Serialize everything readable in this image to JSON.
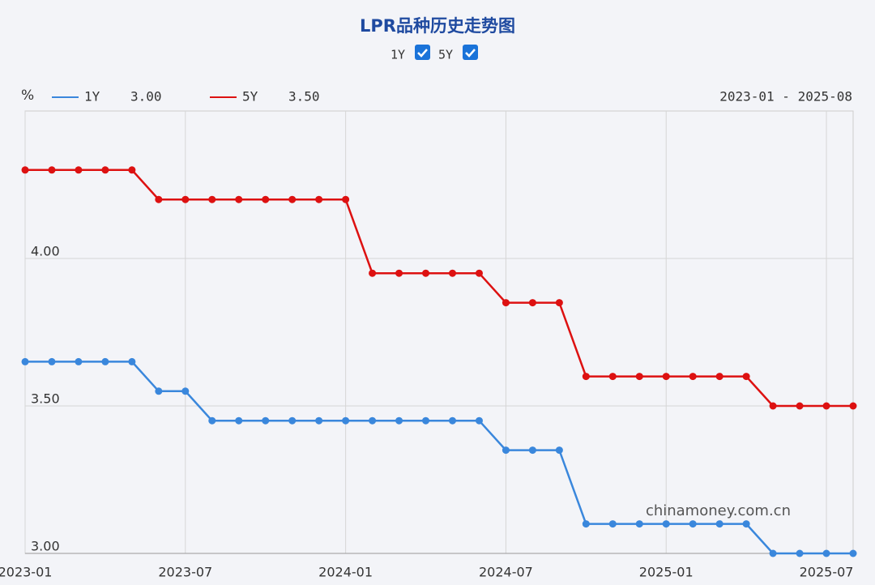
{
  "chart_data": {
    "type": "line",
    "title": "LPR品种历史走势图",
    "y_unit": "%",
    "range_label": "2023-01 - 2025-08",
    "watermark": "chinamoney.com.cn",
    "x": [
      "2023-01",
      "2023-02",
      "2023-03",
      "2023-04",
      "2023-05",
      "2023-06",
      "2023-07",
      "2023-08",
      "2023-09",
      "2023-10",
      "2023-11",
      "2023-12",
      "2024-01",
      "2024-02",
      "2024-03",
      "2024-04",
      "2024-05",
      "2024-06",
      "2024-07",
      "2024-08",
      "2024-09",
      "2024-10",
      "2024-11",
      "2024-12",
      "2025-01",
      "2025-02",
      "2025-03",
      "2025-04",
      "2025-05",
      "2025-06",
      "2025-07",
      "2025-08"
    ],
    "series": [
      {
        "name": "1Y",
        "legend_value": "3.00",
        "color": "#3a87dc",
        "values": [
          3.65,
          3.65,
          3.65,
          3.65,
          3.65,
          3.55,
          3.55,
          3.45,
          3.45,
          3.45,
          3.45,
          3.45,
          3.45,
          3.45,
          3.45,
          3.45,
          3.45,
          3.45,
          3.35,
          3.35,
          3.35,
          3.1,
          3.1,
          3.1,
          3.1,
          3.1,
          3.1,
          3.1,
          3.0,
          3.0,
          3.0,
          3.0
        ]
      },
      {
        "name": "5Y",
        "legend_value": "3.50",
        "color": "#dd1111",
        "values": [
          4.3,
          4.3,
          4.3,
          4.3,
          4.3,
          4.2,
          4.2,
          4.2,
          4.2,
          4.2,
          4.2,
          4.2,
          4.2,
          3.95,
          3.95,
          3.95,
          3.95,
          3.95,
          3.85,
          3.85,
          3.85,
          3.6,
          3.6,
          3.6,
          3.6,
          3.6,
          3.6,
          3.6,
          3.5,
          3.5,
          3.5,
          3.5
        ]
      }
    ],
    "ylim": [
      3.0,
      4.5
    ],
    "yticks": [
      {
        "value": 3.0,
        "label": "3.00"
      },
      {
        "value": 3.5,
        "label": "3.50"
      },
      {
        "value": 4.0,
        "label": "4.00"
      }
    ],
    "xticks": [
      "2023-01",
      "2023-07",
      "2024-01",
      "2024-07",
      "2025-01",
      "2025-07"
    ],
    "grid": true
  }
}
